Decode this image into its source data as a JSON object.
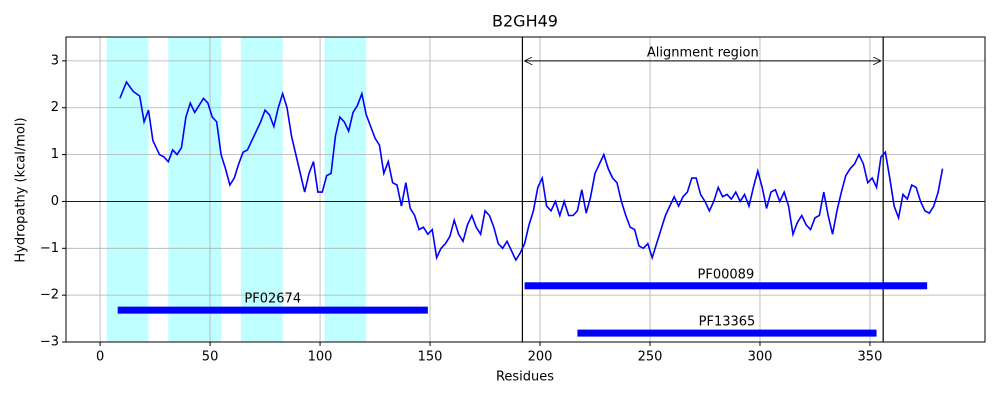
{
  "chart_data": {
    "type": "line",
    "title": "B2GH49",
    "xlabel": "Residues",
    "ylabel": "Hydropathy (kcal/mol)",
    "color": "#0000ff",
    "grid": true,
    "xlim": [
      -15.5,
      402.3
    ],
    "ylim": [
      -3,
      3.51
    ],
    "xticks": [
      0,
      50,
      100,
      150,
      200,
      250,
      300,
      350
    ],
    "yticks": [
      {
        "value": -3,
        "label": "−3"
      },
      {
        "value": -2,
        "label": "−2"
      },
      {
        "value": -1,
        "label": "−1"
      },
      0,
      1,
      2,
      3
    ],
    "x": [
      9,
      12,
      15,
      18,
      20,
      22,
      24,
      27,
      29,
      31,
      33,
      35,
      37,
      39,
      41,
      43,
      45,
      47,
      49,
      51,
      53,
      55,
      57,
      59,
      61,
      63,
      65,
      67,
      69,
      71,
      73,
      75,
      77,
      79,
      81,
      83,
      85,
      87,
      89,
      91,
      93,
      95,
      97,
      99,
      101,
      103,
      105,
      107,
      109,
      111,
      113,
      115,
      117,
      119,
      121,
      123,
      125,
      127,
      129,
      131,
      133,
      135,
      137,
      139,
      141,
      143,
      145,
      147,
      149,
      151,
      153,
      155,
      157,
      159,
      161,
      163,
      165,
      167,
      169,
      171,
      173,
      175,
      177,
      179,
      181,
      183,
      185,
      187,
      189,
      191,
      193,
      195,
      197,
      199,
      201,
      203,
      205,
      207,
      209,
      211,
      213,
      215,
      217,
      219,
      221,
      223,
      225,
      227,
      229,
      231,
      233,
      235,
      237,
      239,
      241,
      243,
      245,
      247,
      249,
      251,
      253,
      255,
      257,
      259,
      261,
      263,
      265,
      267,
      269,
      271,
      273,
      275,
      277,
      279,
      281,
      283,
      285,
      287,
      289,
      291,
      293,
      295,
      297,
      299,
      301,
      303,
      305,
      307,
      309,
      311,
      313,
      315,
      317,
      319,
      321,
      323,
      325,
      327,
      329,
      331,
      333,
      335,
      337,
      339,
      341,
      343,
      345,
      347,
      349,
      351,
      353,
      355,
      357,
      359,
      361,
      363,
      365,
      367,
      369,
      371,
      373,
      375,
      377,
      379,
      381,
      383
    ],
    "values": [
      2.2,
      2.55,
      2.35,
      2.25,
      1.7,
      1.95,
      1.3,
      1.0,
      0.95,
      0.85,
      1.1,
      1.0,
      1.15,
      1.8,
      2.1,
      1.9,
      2.05,
      2.2,
      2.1,
      1.8,
      1.7,
      1.0,
      0.7,
      0.35,
      0.5,
      0.8,
      1.05,
      1.1,
      1.3,
      1.5,
      1.7,
      1.95,
      1.85,
      1.6,
      2.0,
      2.3,
      2.0,
      1.4,
      1.0,
      0.6,
      0.2,
      0.6,
      0.85,
      0.2,
      0.2,
      0.55,
      0.6,
      1.4,
      1.8,
      1.7,
      1.5,
      1.9,
      2.05,
      2.3,
      1.85,
      1.6,
      1.35,
      1.2,
      0.6,
      0.85,
      0.4,
      0.35,
      -0.1,
      0.4,
      -0.15,
      -0.3,
      -0.6,
      -0.55,
      -0.7,
      -0.6,
      -1.2,
      -1.0,
      -0.9,
      -0.75,
      -0.4,
      -0.7,
      -0.85,
      -0.5,
      -0.3,
      -0.55,
      -0.7,
      -0.2,
      -0.3,
      -0.55,
      -0.9,
      -1.0,
      -0.85,
      -1.05,
      -1.25,
      -1.1,
      -0.9,
      -0.5,
      -0.2,
      0.3,
      0.5,
      -0.1,
      -0.2,
      0,
      -0.3,
      0,
      -0.3,
      -0.3,
      -0.2,
      0.25,
      -0.25,
      0.1,
      0.6,
      0.8,
      1.0,
      0.7,
      0.5,
      0.4,
      0.0,
      -0.3,
      -0.55,
      -0.6,
      -0.95,
      -1.0,
      -0.9,
      -1.2,
      -0.9,
      -0.6,
      -0.3,
      -0.1,
      0.1,
      -0.1,
      0.1,
      0.2,
      0.5,
      0.5,
      0.15,
      0.0,
      -0.2,
      0.0,
      0.3,
      0.1,
      0.15,
      0.05,
      0.2,
      0.0,
      0.15,
      -0.1,
      0.3,
      0.65,
      0.3,
      -0.15,
      0.2,
      0.25,
      0.0,
      0.2,
      -0.1,
      -0.7,
      -0.45,
      -0.3,
      -0.5,
      -0.6,
      -0.35,
      -0.3,
      0.2,
      -0.3,
      -0.7,
      -0.2,
      0.2,
      0.55,
      0.7,
      0.8,
      1.0,
      0.8,
      0.4,
      0.5,
      0.3,
      0.95,
      1.05,
      0.5,
      -0.1,
      -0.35,
      0.15,
      0.05,
      0.35,
      0.3,
      0.0,
      -0.2,
      -0.25,
      -0.1,
      0.2,
      0.7
    ],
    "spans": [
      [
        3,
        22
      ],
      [
        31,
        55
      ],
      [
        64,
        83
      ],
      [
        102,
        121
      ]
    ],
    "span_color": "#bfffff",
    "alignment_region": {
      "label": "Alignment region",
      "start": 192,
      "end": 356,
      "y": 3
    },
    "domains": [
      {
        "name": "PF02674",
        "start": 8,
        "end": 149,
        "y": -2.32
      },
      {
        "name": "PF00089",
        "start": 193,
        "end": 376,
        "y": -1.8
      },
      {
        "name": "PF13365",
        "start": 217,
        "end": 353,
        "y": -2.81
      }
    ],
    "domain_color": "#0000ff"
  }
}
